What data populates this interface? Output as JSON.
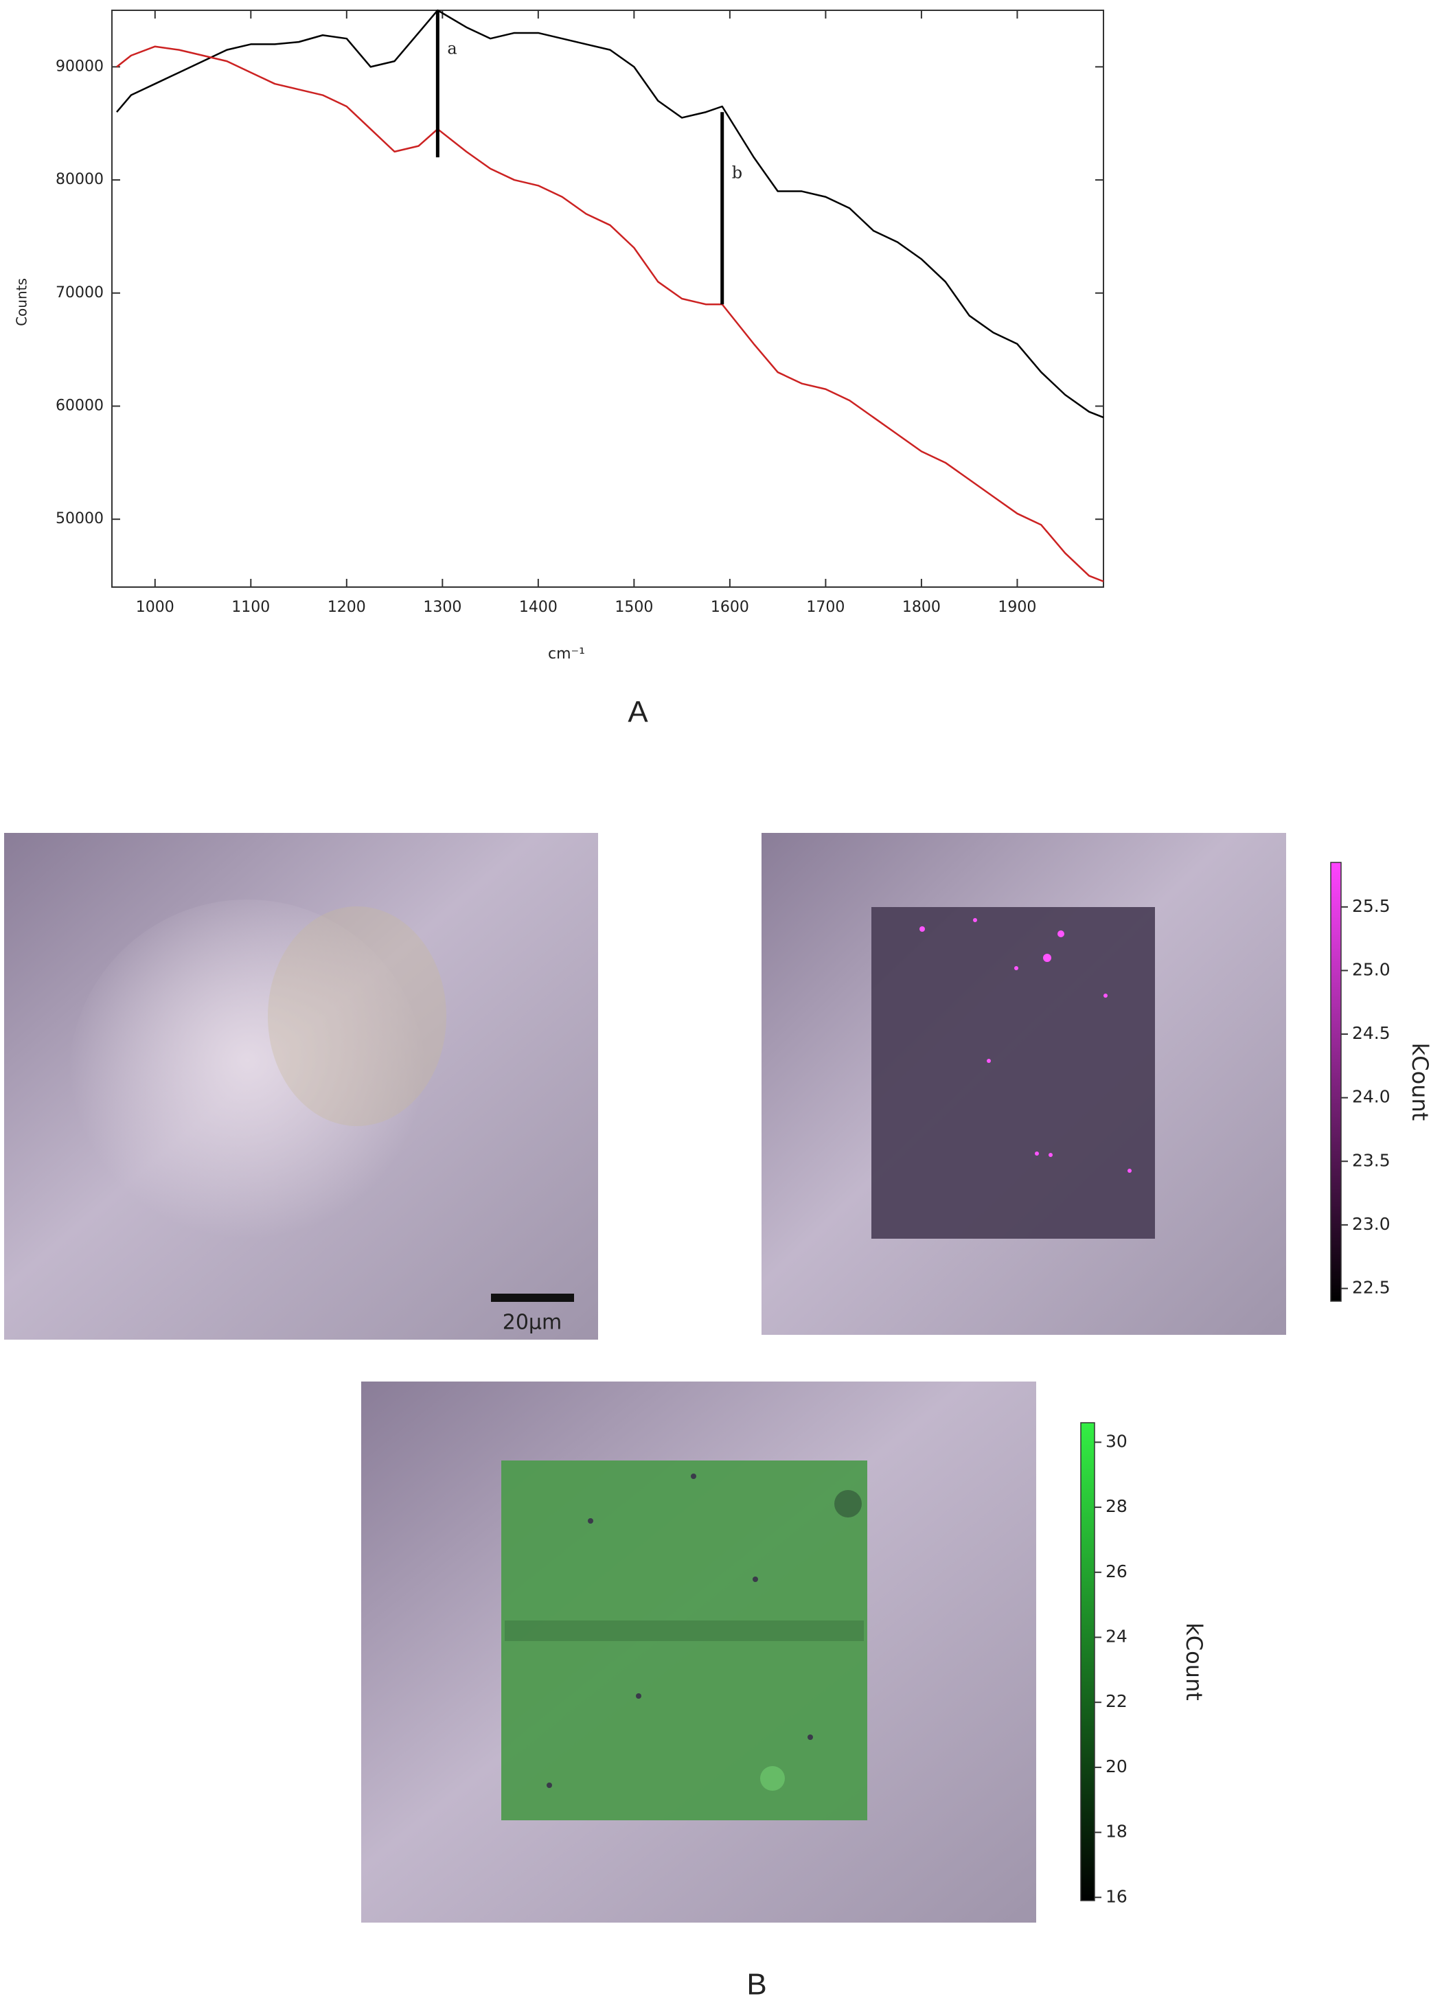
{
  "chart_data": [
    {
      "type": "line",
      "x_label": "cm⁻¹",
      "y_label": "Counts",
      "xlim": [
        955,
        1990
      ],
      "ylim": [
        44000,
        95000
      ],
      "xticks": [
        1000,
        1100,
        1200,
        1300,
        1400,
        1500,
        1600,
        1700,
        1800,
        1900
      ],
      "yticks": [
        50000,
        60000,
        70000,
        80000,
        90000
      ],
      "x": [
        960,
        975,
        1000,
        1025,
        1050,
        1075,
        1100,
        1125,
        1150,
        1175,
        1200,
        1225,
        1250,
        1275,
        1295,
        1325,
        1350,
        1375,
        1400,
        1425,
        1450,
        1475,
        1500,
        1525,
        1550,
        1575,
        1592,
        1625,
        1650,
        1675,
        1700,
        1725,
        1750,
        1775,
        1800,
        1825,
        1850,
        1875,
        1900,
        1925,
        1950,
        1975,
        1990
      ],
      "series": [
        {
          "color": "#000000",
          "values": [
            86000,
            87500,
            88500,
            89500,
            90500,
            91500,
            92000,
            92000,
            92200,
            92800,
            92500,
            90000,
            90500,
            93000,
            95000,
            93500,
            92500,
            93000,
            93000,
            92500,
            92000,
            91500,
            90000,
            87000,
            85500,
            86000,
            86500,
            82000,
            79000,
            79000,
            78500,
            77500,
            75500,
            74500,
            73000,
            71000,
            68000,
            66500,
            65500,
            63000,
            61000,
            59500,
            59000
          ]
        },
        {
          "color": "#cc2222",
          "values": [
            90000,
            91000,
            91800,
            91500,
            91000,
            90500,
            89500,
            88500,
            88000,
            87500,
            86500,
            84500,
            82500,
            83000,
            84500,
            82500,
            81000,
            80000,
            79500,
            78500,
            77000,
            76000,
            74000,
            71000,
            69500,
            69000,
            69000,
            65500,
            63000,
            62000,
            61500,
            60500,
            59000,
            57500,
            56000,
            55000,
            53500,
            52000,
            50500,
            49500,
            47000,
            45000,
            44500
          ]
        }
      ],
      "annotations": [
        {
          "text": "a",
          "x": 1295,
          "y": [
            82000,
            95000
          ]
        },
        {
          "text": "b",
          "x": 1592,
          "y": [
            69000,
            86000
          ]
        }
      ]
    },
    {
      "type": "colorbar",
      "label": "kCount",
      "color": "#ff44ff",
      "ylim": [
        22.4,
        25.85
      ],
      "yticks": [
        22.5,
        {
          "value": 23,
          "label": "23.0"
        },
        23.5,
        {
          "value": 24,
          "label": "24.0"
        },
        24.5,
        {
          "value": 25,
          "label": "25.0"
        },
        25.5
      ]
    },
    {
      "type": "colorbar",
      "label": "kCount",
      "color": "#33ee44",
      "ylim": [
        15.9,
        30.6
      ],
      "yticks": [
        16,
        18,
        20,
        22,
        24,
        26,
        28,
        30
      ]
    }
  ],
  "figure": {
    "panels": [
      "A",
      "B"
    ],
    "scale_bar": "20µm"
  }
}
